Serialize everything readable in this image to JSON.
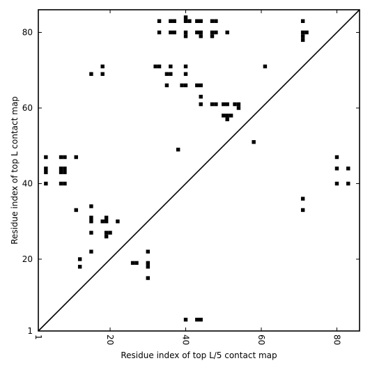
{
  "chart_data": {
    "type": "scatter",
    "title": "",
    "xlabel": "Residue index of top L/5 contact map",
    "ylabel": "Residue index of top L contact map",
    "xlim": [
      1,
      86
    ],
    "ylim": [
      1,
      86
    ],
    "x_ticks": [
      1,
      20,
      40,
      60,
      80
    ],
    "x_tick_labels": [
      "1",
      "20",
      "40",
      "60",
      "80"
    ],
    "y_ticks": [
      1,
      20,
      40,
      60,
      80
    ],
    "y_tick_labels": [
      "1",
      "20",
      "40",
      "60",
      "80"
    ],
    "x_tick_rotation": 270,
    "diagonal": true,
    "grid": false,
    "marker": "square",
    "marker_color": "#000000",
    "series": [
      {
        "name": "",
        "points": [
          [
            33,
            83
          ],
          [
            36,
            83
          ],
          [
            37,
            83
          ],
          [
            40,
            84
          ],
          [
            40,
            83
          ],
          [
            41,
            83
          ],
          [
            43,
            83
          ],
          [
            44,
            83
          ],
          [
            47,
            83
          ],
          [
            48,
            83
          ],
          [
            71,
            83
          ],
          [
            33,
            80
          ],
          [
            36,
            80
          ],
          [
            37,
            80
          ],
          [
            40,
            80
          ],
          [
            40,
            79
          ],
          [
            43,
            80
          ],
          [
            44,
            80
          ],
          [
            44,
            79
          ],
          [
            47,
            80
          ],
          [
            48,
            80
          ],
          [
            47,
            79
          ],
          [
            51,
            80
          ],
          [
            71,
            80
          ],
          [
            72,
            80
          ],
          [
            71,
            79
          ],
          [
            71,
            78
          ],
          [
            18,
            71
          ],
          [
            32,
            71
          ],
          [
            33,
            71
          ],
          [
            36,
            71
          ],
          [
            40,
            71
          ],
          [
            61,
            71
          ],
          [
            15,
            69
          ],
          [
            18,
            69
          ],
          [
            35,
            69
          ],
          [
            36,
            69
          ],
          [
            40,
            69
          ],
          [
            35,
            66
          ],
          [
            39,
            66
          ],
          [
            40,
            66
          ],
          [
            43,
            66
          ],
          [
            44,
            66
          ],
          [
            44,
            63
          ],
          [
            44,
            61
          ],
          [
            47,
            61
          ],
          [
            48,
            61
          ],
          [
            50,
            61
          ],
          [
            51,
            61
          ],
          [
            53,
            61
          ],
          [
            54,
            61
          ],
          [
            54,
            60
          ],
          [
            50,
            58
          ],
          [
            51,
            58
          ],
          [
            52,
            58
          ],
          [
            51,
            57
          ],
          [
            58,
            51
          ],
          [
            38,
            49
          ],
          [
            3,
            47
          ],
          [
            7,
            47
          ],
          [
            8,
            47
          ],
          [
            11,
            47
          ],
          [
            80,
            47
          ],
          [
            3,
            44
          ],
          [
            3,
            43
          ],
          [
            7,
            44
          ],
          [
            8,
            44
          ],
          [
            7,
            43
          ],
          [
            8,
            43
          ],
          [
            80,
            44
          ],
          [
            83,
            44
          ],
          [
            3,
            40
          ],
          [
            7,
            40
          ],
          [
            8,
            40
          ],
          [
            80,
            40
          ],
          [
            83,
            40
          ],
          [
            71,
            36
          ],
          [
            15,
            34
          ],
          [
            11,
            33
          ],
          [
            71,
            33
          ],
          [
            15,
            31
          ],
          [
            15,
            30
          ],
          [
            19,
            31
          ],
          [
            18,
            30
          ],
          [
            19,
            30
          ],
          [
            22,
            30
          ],
          [
            15,
            27
          ],
          [
            19,
            27
          ],
          [
            20,
            27
          ],
          [
            19,
            26
          ],
          [
            15,
            22
          ],
          [
            30,
            22
          ],
          [
            12,
            20
          ],
          [
            26,
            19
          ],
          [
            27,
            19
          ],
          [
            30,
            19
          ],
          [
            30,
            18
          ],
          [
            12,
            18
          ],
          [
            30,
            15
          ],
          [
            40,
            4
          ],
          [
            43,
            4
          ],
          [
            44,
            4
          ]
        ]
      }
    ]
  }
}
